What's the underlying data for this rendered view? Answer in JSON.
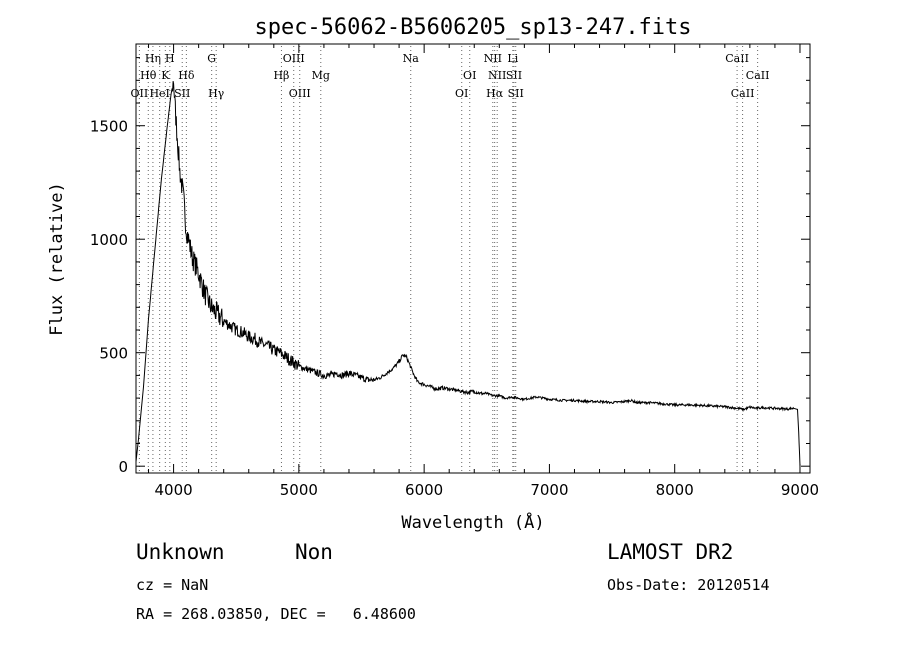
{
  "chart_data": {
    "type": "line",
    "title": "spec-56062-B5606205_sp13-247.fits",
    "xlabel": "Wavelength (Å)",
    "ylabel": "Flux (relative)",
    "xlim": [
      3700,
      9080
    ],
    "ylim": [
      -30,
      1860
    ],
    "xticks": [
      4000,
      5000,
      6000,
      7000,
      8000,
      9000
    ],
    "yticks": [
      0,
      500,
      1000,
      1500
    ],
    "grid": false,
    "series": [
      {
        "x": [
          3700,
          3720,
          3760,
          3800,
          3850,
          3900,
          3950,
          3980,
          4000,
          4010,
          4030,
          4050,
          4080,
          4100,
          4150,
          4200,
          4250,
          4300,
          4350,
          4400,
          4450,
          4500,
          4550,
          4600,
          4650,
          4700,
          4750,
          4800,
          4850,
          4900,
          4950,
          5000,
          5050,
          5100,
          5150,
          5200,
          5250,
          5300,
          5350,
          5400,
          5450,
          5500,
          5550,
          5600,
          5650,
          5700,
          5750,
          5800,
          5830,
          5860,
          5890,
          5920,
          5950,
          6000,
          6050,
          6100,
          6150,
          6200,
          6250,
          6300,
          6350,
          6400,
          6450,
          6500,
          6550,
          6600,
          6650,
          6700,
          6750,
          6800,
          6850,
          6900,
          6950,
          7000,
          7100,
          7200,
          7300,
          7400,
          7500,
          7600,
          7650,
          7700,
          7800,
          7900,
          8000,
          8100,
          8200,
          8300,
          8400,
          8500,
          8550,
          8600,
          8650,
          8700,
          8800,
          8900,
          8950,
          8980,
          8990,
          9000
        ],
        "y": [
          20,
          120,
          350,
          650,
          950,
          1250,
          1500,
          1640,
          1700,
          1600,
          1450,
          1300,
          1180,
          1050,
          920,
          850,
          760,
          700,
          670,
          640,
          620,
          600,
          590,
          570,
          560,
          540,
          530,
          510,
          500,
          480,
          460,
          440,
          430,
          420,
          410,
          400,
          400,
          410,
          400,
          410,
          400,
          390,
          380,
          380,
          390,
          410,
          430,
          460,
          490,
          480,
          440,
          400,
          370,
          360,
          350,
          340,
          345,
          340,
          335,
          330,
          325,
          330,
          320,
          320,
          310,
          310,
          300,
          305,
          300,
          295,
          300,
          305,
          300,
          295,
          290,
          290,
          285,
          285,
          280,
          285,
          290,
          280,
          280,
          275,
          270,
          270,
          268,
          265,
          262,
          255,
          250,
          260,
          255,
          258,
          255,
          252,
          255,
          250,
          150,
          0
        ]
      }
    ],
    "lines": [
      {
        "name": "Hγ",
        "x": 4340,
        "row": 2
      },
      {
        "name": "Hδ",
        "x": 4102,
        "row": 1
      },
      {
        "name": "Hη",
        "x": 3835,
        "row": 0
      },
      {
        "name": "Hθ",
        "x": 3798,
        "row": 1
      },
      {
        "name": "H",
        "x": 3970,
        "row": 0
      },
      {
        "name": "K",
        "x": 3934,
        "row": 1
      },
      {
        "name": "OII",
        "x": 3727,
        "row": 2
      },
      {
        "name": "HeI",
        "x": 3889,
        "row": 2
      },
      {
        "name": "SII",
        "x": 4069,
        "row": 2
      },
      {
        "name": "G",
        "x": 4304,
        "row": 0
      },
      {
        "name": "OIII",
        "x": 4959,
        "row": 0
      },
      {
        "name": "Hβ",
        "x": 4861,
        "row": 1
      },
      {
        "name": "OIII",
        "x": 5007,
        "row": 2
      },
      {
        "name": "Mg",
        "x": 5175,
        "row": 1
      },
      {
        "name": "Na",
        "x": 5893,
        "row": 0
      },
      {
        "name": "OI",
        "x": 6364,
        "row": 1
      },
      {
        "name": "OI",
        "x": 6300,
        "row": 2
      },
      {
        "name": "NII",
        "x": 6548,
        "row": 0
      },
      {
        "name": "NII",
        "x": 6583,
        "row": 1
      },
      {
        "name": "Hα",
        "x": 6563,
        "row": 2
      },
      {
        "name": "SII",
        "x": 6717,
        "row": 1
      },
      {
        "name": "SII",
        "x": 6731,
        "row": 2
      },
      {
        "name": "Li",
        "x": 6708,
        "row": 0
      },
      {
        "name": "CaII",
        "x": 8498,
        "row": 0
      },
      {
        "name": "CaII",
        "x": 8662,
        "row": 1
      },
      {
        "name": "CaII",
        "x": 8542,
        "row": 2
      }
    ]
  },
  "info": {
    "class": "Unknown",
    "subclass": "Non",
    "survey": "LAMOST DR2",
    "cz": "cz = NaN",
    "obs_date": "Obs-Date: 20120514",
    "coords": "RA = 268.03850, DEC =   6.48600"
  }
}
